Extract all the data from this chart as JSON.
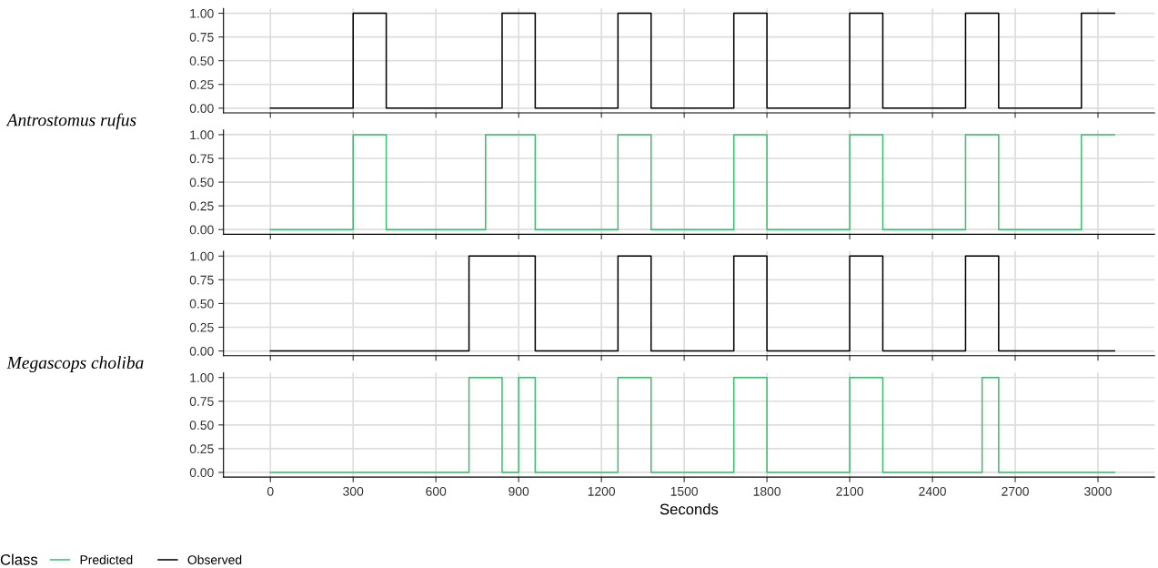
{
  "chart_data": [
    {
      "type": "step",
      "annotations": [
        "Antrostomus rufus"
      ],
      "x": [
        0,
        300,
        420,
        840,
        960,
        1260,
        1380,
        1680,
        1800,
        2100,
        2220,
        2520,
        2640,
        2940,
        3060
      ],
      "series": [
        {
          "name": "Observed",
          "color": "#000000",
          "values": [
            0,
            1,
            0,
            1,
            0,
            1,
            0,
            1,
            0,
            1,
            0,
            1,
            0,
            1,
            1
          ]
        }
      ],
      "xlim": [
        -170,
        3205
      ],
      "xticks": [
        0,
        300,
        600,
        900,
        1200,
        1500,
        1800,
        2100,
        2400,
        2700,
        3000
      ],
      "ylim": [
        -0.05,
        1.05
      ],
      "yticks": [
        {
          "value": 0,
          "label": "0.00"
        },
        {
          "value": 0.25,
          "label": "0.25"
        },
        {
          "value": 0.5,
          "label": "0.50"
        },
        {
          "value": 0.75,
          "label": "0.75"
        },
        {
          "value": 1,
          "label": "1.00"
        }
      ],
      "tick_labels": "y",
      "grid": true
    },
    {
      "type": "step",
      "x": [
        0,
        300,
        420,
        780,
        960,
        1260,
        1380,
        1680,
        1800,
        2100,
        2220,
        2520,
        2640,
        2940,
        3060
      ],
      "series": [
        {
          "name": "Predicted",
          "color": "#3dbd6e",
          "values": [
            0,
            1,
            0,
            1,
            0,
            1,
            0,
            1,
            0,
            1,
            0,
            1,
            0,
            1,
            1
          ]
        }
      ],
      "xlim": [
        -170,
        3205
      ],
      "xticks": [
        0,
        300,
        600,
        900,
        1200,
        1500,
        1800,
        2100,
        2400,
        2700,
        3000
      ],
      "ylim": [
        -0.05,
        1.05
      ],
      "yticks": [
        {
          "value": 0,
          "label": "0.00"
        },
        {
          "value": 0.25,
          "label": "0.25"
        },
        {
          "value": 0.5,
          "label": "0.50"
        },
        {
          "value": 0.75,
          "label": "0.75"
        },
        {
          "value": 1,
          "label": "1.00"
        }
      ],
      "tick_labels": "y",
      "grid": true
    },
    {
      "type": "step",
      "annotations": [
        "Megascops choliba"
      ],
      "x": [
        0,
        720,
        960,
        1260,
        1380,
        1680,
        1800,
        2100,
        2220,
        2520,
        2640,
        3060
      ],
      "series": [
        {
          "name": "Observed",
          "color": "#000000",
          "values": [
            0,
            1,
            0,
            1,
            0,
            1,
            0,
            1,
            0,
            1,
            0,
            0
          ]
        }
      ],
      "xlim": [
        -170,
        3205
      ],
      "xticks": [
        0,
        300,
        600,
        900,
        1200,
        1500,
        1800,
        2100,
        2400,
        2700,
        3000
      ],
      "ylim": [
        -0.05,
        1.05
      ],
      "yticks": [
        {
          "value": 0,
          "label": "0.00"
        },
        {
          "value": 0.25,
          "label": "0.25"
        },
        {
          "value": 0.5,
          "label": "0.50"
        },
        {
          "value": 0.75,
          "label": "0.75"
        },
        {
          "value": 1,
          "label": "1.00"
        }
      ],
      "tick_labels": "y",
      "grid": true
    },
    {
      "type": "step",
      "x": [
        0,
        720,
        840,
        900,
        960,
        1260,
        1380,
        1680,
        1800,
        2100,
        2220,
        2580,
        2640,
        3060
      ],
      "series": [
        {
          "name": "Predicted",
          "color": "#3dbd6e",
          "values": [
            0,
            1,
            0,
            1,
            0,
            1,
            0,
            1,
            0,
            1,
            0,
            1,
            0,
            0
          ]
        }
      ],
      "xlabel": "Seconds",
      "legend": "bottom",
      "legend_title": "Class",
      "xlim": [
        -170,
        3205
      ],
      "xticks": [
        0,
        300,
        600,
        900,
        1200,
        1500,
        1800,
        2100,
        2400,
        2700,
        3000
      ],
      "ylim": [
        -0.05,
        1.05
      ],
      "yticks": [
        {
          "value": 0,
          "label": "0.00"
        },
        {
          "value": 0.25,
          "label": "0.25"
        },
        {
          "value": 0.5,
          "label": "0.50"
        },
        {
          "value": 0.75,
          "label": "0.75"
        },
        {
          "value": 1,
          "label": "1.00"
        }
      ],
      "grid": true
    }
  ]
}
